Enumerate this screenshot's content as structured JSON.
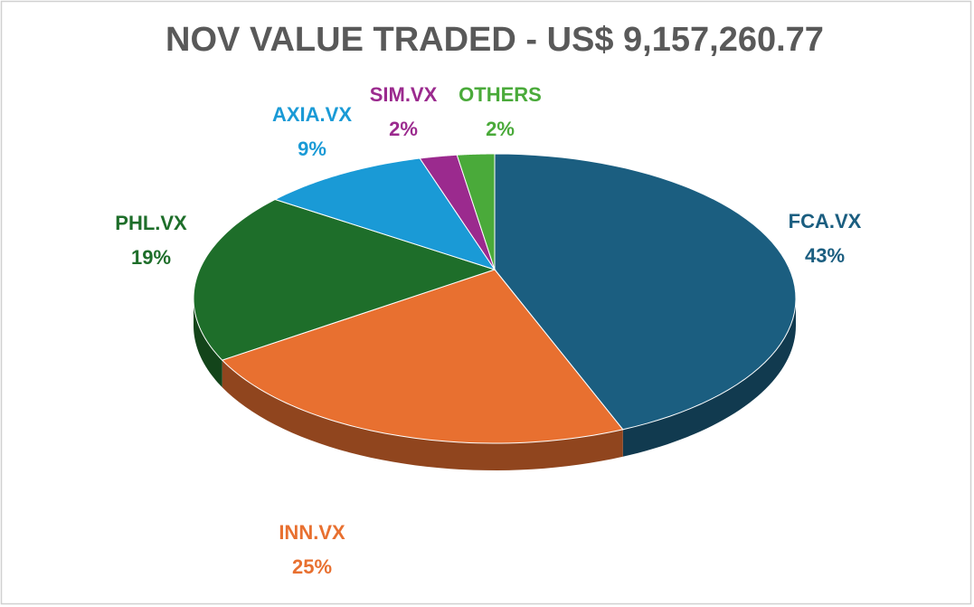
{
  "chart_data": {
    "type": "pie",
    "title": "NOV VALUE TRADED - US$ 9,157,260.77",
    "categories": [
      "FCA.VX",
      "INN.VX",
      "PHL.VX",
      "AXIA.VX",
      "SIM.VX",
      "OTHERS"
    ],
    "values": [
      43,
      25,
      19,
      9,
      2,
      2
    ],
    "value_labels": [
      "43%",
      "25%",
      "19%",
      "9%",
      "2%",
      "2%"
    ],
    "colors": [
      "#1b5e80",
      "#e87030",
      "#1e6e2a",
      "#1a9ad6",
      "#9b2a8e",
      "#4aaa3a"
    ]
  }
}
